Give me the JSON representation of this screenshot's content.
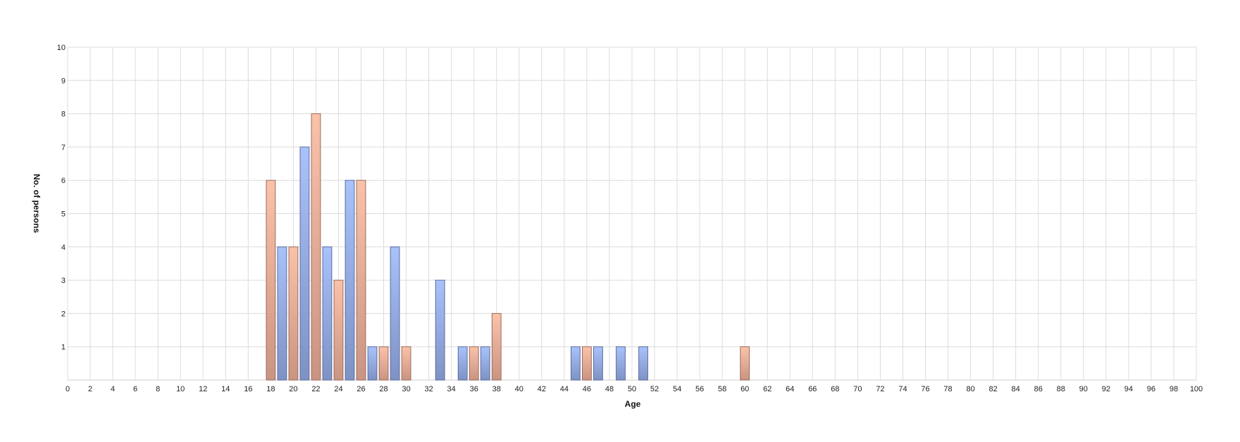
{
  "chart_data": {
    "type": "bar",
    "xlabel": "Age",
    "ylabel": "No. of persons",
    "xlim": [
      0,
      100
    ],
    "ylim": [
      0,
      10
    ],
    "x_ticks": [
      0,
      2,
      4,
      6,
      8,
      10,
      12,
      14,
      16,
      18,
      20,
      22,
      24,
      26,
      28,
      30,
      32,
      34,
      36,
      38,
      40,
      42,
      44,
      46,
      48,
      50,
      52,
      54,
      56,
      58,
      60,
      62,
      64,
      66,
      68,
      70,
      72,
      74,
      76,
      78,
      80,
      82,
      84,
      86,
      88,
      90,
      92,
      94,
      96,
      98,
      100
    ],
    "y_ticks": [
      1,
      2,
      3,
      4,
      5,
      6,
      7,
      8,
      9,
      10
    ],
    "grid": true,
    "bar_width": 0.8,
    "series": [
      {
        "color": "#9fb8f5",
        "points": [
          {
            "x": 19,
            "y": 4
          },
          {
            "x": 21,
            "y": 7
          },
          {
            "x": 23,
            "y": 4
          },
          {
            "x": 25,
            "y": 6
          },
          {
            "x": 27,
            "y": 1
          },
          {
            "x": 29,
            "y": 4
          },
          {
            "x": 33,
            "y": 3
          },
          {
            "x": 35,
            "y": 1
          },
          {
            "x": 37,
            "y": 1
          },
          {
            "x": 45,
            "y": 1
          },
          {
            "x": 47,
            "y": 1
          },
          {
            "x": 49,
            "y": 1
          },
          {
            "x": 51,
            "y": 1
          }
        ]
      },
      {
        "color": "#f8b9a0",
        "points": [
          {
            "x": 18,
            "y": 6
          },
          {
            "x": 20,
            "y": 4
          },
          {
            "x": 22,
            "y": 8
          },
          {
            "x": 24,
            "y": 3
          },
          {
            "x": 26,
            "y": 6
          },
          {
            "x": 28,
            "y": 1
          },
          {
            "x": 30,
            "y": 1
          },
          {
            "x": 36,
            "y": 1
          },
          {
            "x": 38,
            "y": 2
          },
          {
            "x": 46,
            "y": 1
          },
          {
            "x": 60,
            "y": 1
          }
        ]
      }
    ]
  }
}
